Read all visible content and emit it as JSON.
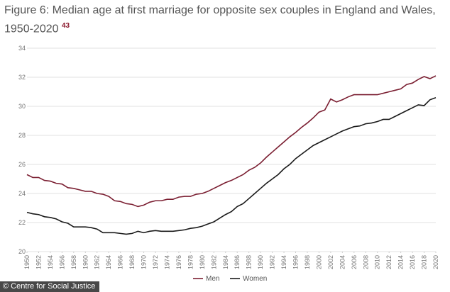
{
  "chart_data": {
    "type": "line",
    "title": "Figure 6: Median age at first marriage for opposite sex couples in England and Wales, 1950-2020",
    "footnote_ref": "43",
    "source": "© Centre for Social Justice",
    "x": [
      1950,
      1951,
      1952,
      1953,
      1954,
      1955,
      1956,
      1957,
      1958,
      1959,
      1960,
      1961,
      1962,
      1963,
      1964,
      1965,
      1966,
      1967,
      1968,
      1969,
      1970,
      1971,
      1972,
      1973,
      1974,
      1975,
      1976,
      1977,
      1978,
      1979,
      1980,
      1981,
      1982,
      1983,
      1984,
      1985,
      1986,
      1987,
      1988,
      1989,
      1990,
      1991,
      1992,
      1993,
      1994,
      1995,
      1996,
      1997,
      1998,
      1999,
      2000,
      2001,
      2002,
      2003,
      2004,
      2005,
      2006,
      2007,
      2008,
      2009,
      2010,
      2011,
      2012,
      2013,
      2014,
      2015,
      2016,
      2017,
      2018,
      2019,
      2020
    ],
    "series": [
      {
        "name": "Men",
        "color": "#7b1f32",
        "values": [
          25.3,
          25.1,
          25.1,
          24.9,
          24.85,
          24.7,
          24.65,
          24.4,
          24.35,
          24.25,
          24.15,
          24.15,
          24.0,
          23.95,
          23.8,
          23.5,
          23.45,
          23.3,
          23.25,
          23.1,
          23.2,
          23.4,
          23.5,
          23.5,
          23.6,
          23.6,
          23.75,
          23.8,
          23.8,
          23.95,
          24.0,
          24.15,
          24.35,
          24.55,
          24.75,
          24.9,
          25.1,
          25.3,
          25.6,
          25.8,
          26.1,
          26.5,
          26.85,
          27.2,
          27.55,
          27.9,
          28.2,
          28.55,
          28.85,
          29.2,
          29.6,
          29.75,
          30.5,
          30.3,
          30.45,
          30.65,
          30.8,
          30.8,
          30.8,
          30.8,
          30.8,
          30.9,
          31.0,
          31.1,
          31.2,
          31.5,
          31.6,
          31.85,
          32.05,
          31.9,
          32.1
        ]
      },
      {
        "name": "Women",
        "color": "#1a1a1a",
        "values": [
          22.7,
          22.6,
          22.55,
          22.4,
          22.35,
          22.25,
          22.05,
          21.95,
          21.7,
          21.7,
          21.7,
          21.65,
          21.55,
          21.3,
          21.3,
          21.3,
          21.25,
          21.2,
          21.25,
          21.4,
          21.3,
          21.4,
          21.45,
          21.4,
          21.4,
          21.4,
          21.45,
          21.5,
          21.6,
          21.65,
          21.75,
          21.9,
          22.05,
          22.3,
          22.55,
          22.75,
          23.1,
          23.3,
          23.65,
          24.0,
          24.35,
          24.7,
          25.0,
          25.3,
          25.7,
          26.0,
          26.4,
          26.7,
          27.0,
          27.3,
          27.5,
          27.7,
          27.9,
          28.1,
          28.3,
          28.45,
          28.6,
          28.65,
          28.8,
          28.85,
          28.95,
          29.1,
          29.1,
          29.3,
          29.5,
          29.7,
          29.9,
          30.1,
          30.05,
          30.45,
          30.6
        ]
      }
    ],
    "xlim": [
      1950,
      2020
    ],
    "xticks": [
      1950,
      1952,
      1954,
      1956,
      1958,
      1960,
      1962,
      1964,
      1966,
      1968,
      1970,
      1972,
      1974,
      1976,
      1978,
      1980,
      1982,
      1984,
      1986,
      1988,
      1990,
      1992,
      1994,
      1996,
      1998,
      2000,
      2002,
      2004,
      2006,
      2008,
      2010,
      2012,
      2014,
      2016,
      2018,
      2020
    ],
    "ylim": [
      20,
      34
    ],
    "yticks": [
      20,
      22,
      24,
      26,
      28,
      30,
      32,
      34
    ],
    "grid": true,
    "legend": "bottom"
  }
}
